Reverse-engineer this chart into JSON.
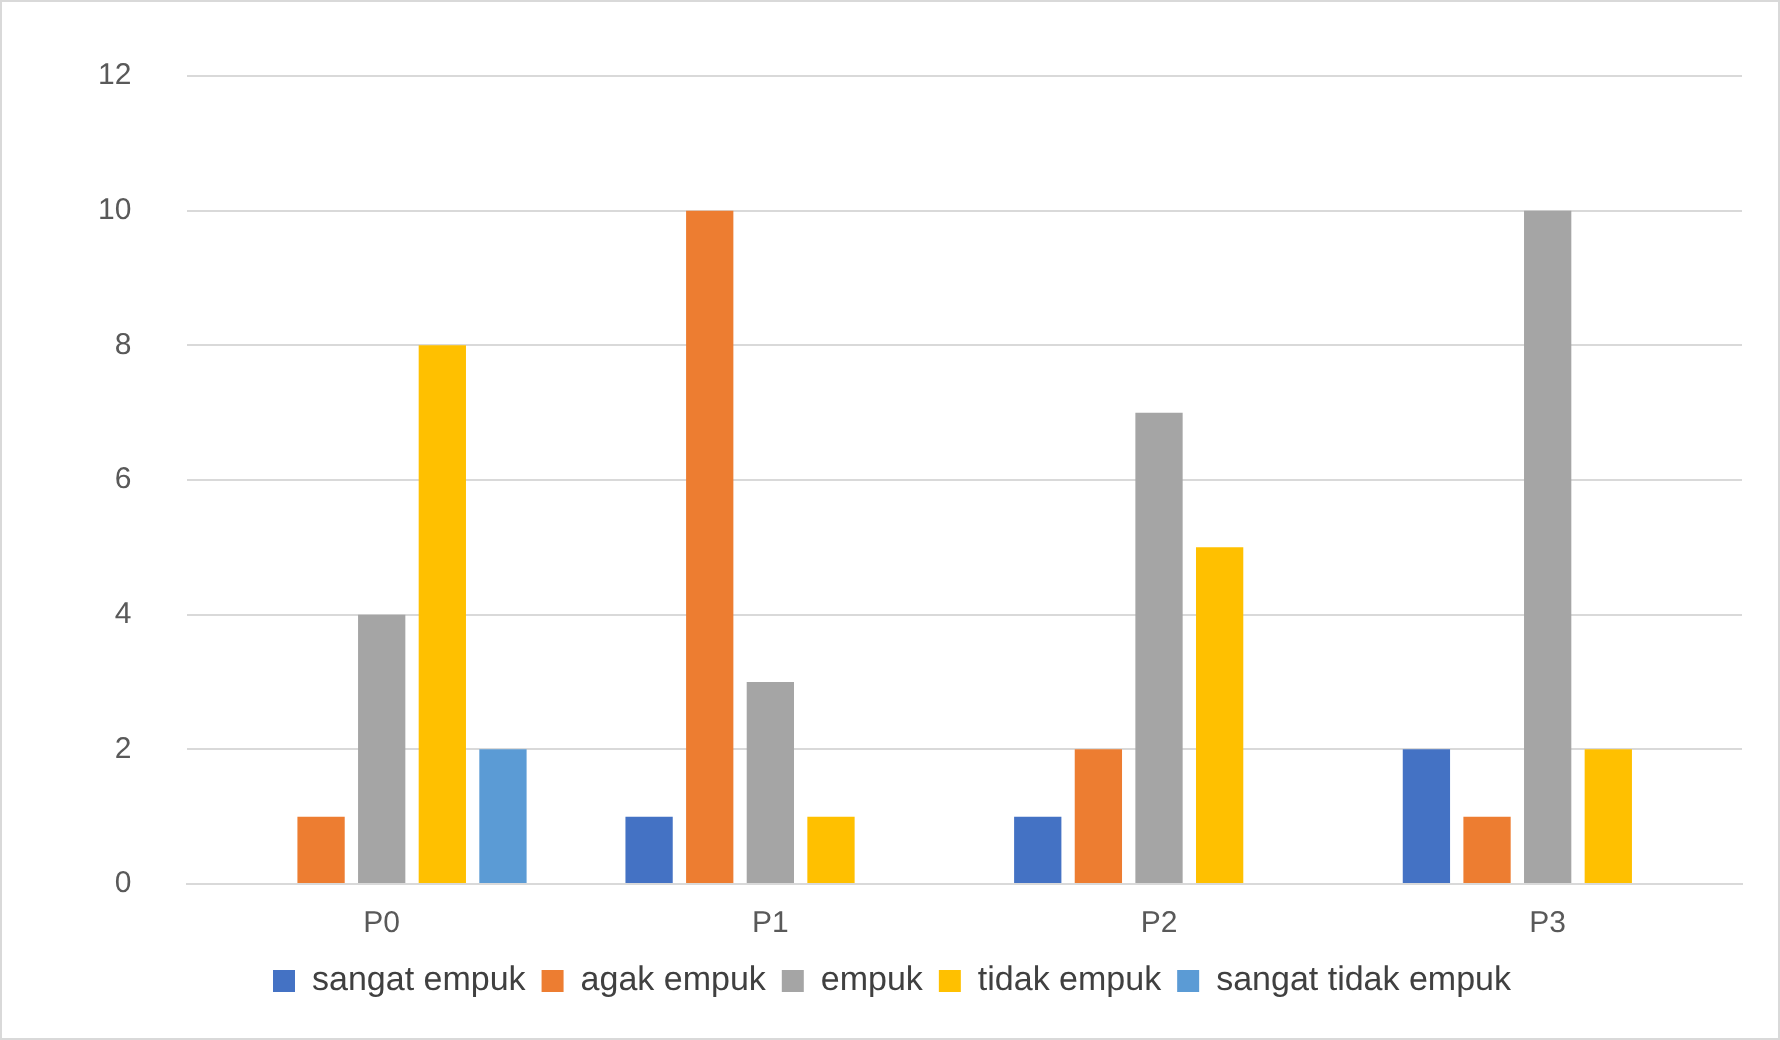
{
  "chart_data": {
    "type": "bar",
    "categories": [
      "P0",
      "P1",
      "P2",
      "P3"
    ],
    "series": [
      {
        "name": "sangat empuk",
        "color": "#4472c4",
        "values": [
          0,
          1,
          1,
          2
        ]
      },
      {
        "name": "agak empuk",
        "color": "#ed7d31",
        "values": [
          1,
          10,
          2,
          1
        ]
      },
      {
        "name": "empuk",
        "color": "#a5a5a5",
        "values": [
          4,
          3,
          7,
          10
        ]
      },
      {
        "name": "tidak empuk",
        "color": "#ffc000",
        "values": [
          8,
          1,
          5,
          2
        ]
      },
      {
        "name": "sangat tidak empuk",
        "color": "#5b9bd5",
        "values": [
          2,
          0,
          0,
          0
        ]
      }
    ],
    "ylim": [
      0,
      12
    ],
    "yticks": [
      0,
      2,
      4,
      6,
      8,
      10,
      12
    ],
    "grid": "y",
    "legend": "bottom"
  }
}
